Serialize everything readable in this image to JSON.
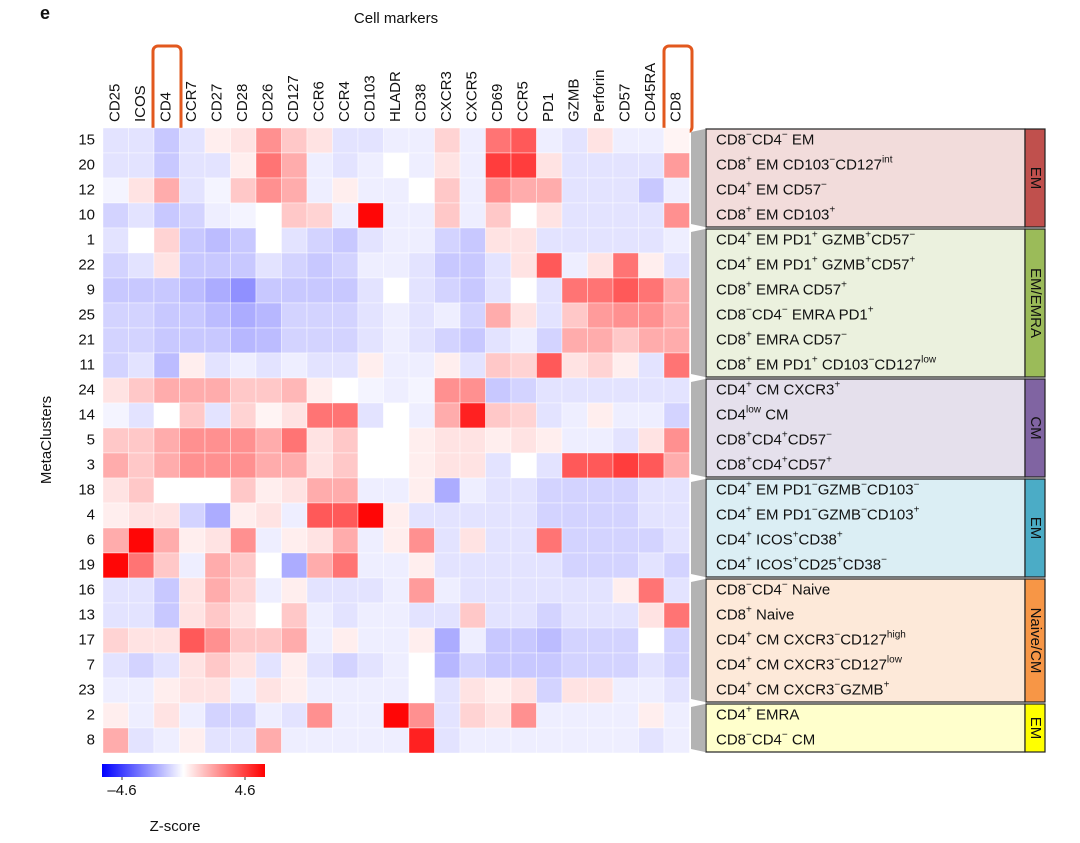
{
  "chart_data": {
    "type": "heatmap",
    "panel_label": "e",
    "x_label": "Cell markers",
    "y_label": "MetaClusters",
    "columns": [
      "CD25",
      "ICOS",
      "CD4",
      "CCR7",
      "CD27",
      "CD28",
      "CD26",
      "CD127",
      "CCR6",
      "CCR4",
      "CD103",
      "HLADR",
      "CD38",
      "CXCR3",
      "CXCR5",
      "CD69",
      "CCR5",
      "PD1",
      "GZMB",
      "Perforin",
      "CD57",
      "CD45RA",
      "CD8"
    ],
    "rows": [
      "15",
      "20",
      "12",
      "10",
      "1",
      "22",
      "9",
      "25",
      "21",
      "11",
      "24",
      "14",
      "5",
      "3",
      "18",
      "4",
      "6",
      "19",
      "16",
      "13",
      "17",
      "7",
      "23",
      "2",
      "8"
    ],
    "values": [
      [
        -0.5,
        -0.5,
        -1,
        -0.5,
        0.3,
        0.5,
        2,
        1,
        0.5,
        -0.5,
        -0.5,
        -0.3,
        -0.3,
        0.8,
        -0.3,
        2.5,
        3,
        -0.3,
        -0.5,
        0.5,
        -0.3,
        -0.3,
        0.2
      ],
      [
        -0.5,
        -0.5,
        -1,
        -0.5,
        -0.5,
        0.3,
        2.5,
        1.5,
        -0.3,
        -0.5,
        -0.3,
        0,
        -0.3,
        0.5,
        -0.3,
        3.5,
        3.5,
        0.5,
        -0.5,
        -0.5,
        -0.5,
        -0.5,
        1.8
      ],
      [
        -0.2,
        0.5,
        1.5,
        -0.5,
        -0.2,
        1,
        2,
        1.5,
        -0.3,
        0.3,
        -0.3,
        -0.3,
        0,
        1,
        -0.3,
        2,
        1.5,
        1.5,
        -0.5,
        -0.5,
        -0.5,
        -1,
        -0.3
      ],
      [
        -0.8,
        -0.5,
        -1,
        -0.8,
        -0.3,
        -0.2,
        0,
        1,
        0.8,
        -0.3,
        4.5,
        -0.3,
        -0.3,
        1,
        -0.3,
        1,
        0,
        0.5,
        -0.5,
        -0.5,
        -0.5,
        -0.5,
        2
      ],
      [
        -0.5,
        0,
        0.8,
        -1,
        -1.2,
        -1,
        0,
        -0.5,
        -0.8,
        -1,
        -0.5,
        -0.3,
        -0.3,
        -0.8,
        -1,
        0.5,
        0.5,
        -0.5,
        -0.5,
        -0.5,
        -0.5,
        -0.5,
        -0.3
      ],
      [
        -0.8,
        -0.5,
        0.5,
        -1,
        -1,
        -1,
        -0.5,
        -0.8,
        -1,
        -0.8,
        -0.3,
        -0.3,
        -0.5,
        -1,
        -1,
        -0.5,
        0.5,
        3,
        -0.3,
        0.5,
        2.5,
        0.3,
        -0.5
      ],
      [
        -1,
        -1,
        -1,
        -1.2,
        -1.5,
        -2,
        -1,
        -1,
        -1,
        -1,
        -0.5,
        0,
        -0.5,
        -0.8,
        -1,
        -0.5,
        0,
        -0.5,
        2.5,
        2.5,
        3,
        2.5,
        1.5
      ],
      [
        -0.8,
        -0.8,
        -1,
        -1,
        -1.2,
        -1.5,
        -1.3,
        -0.8,
        -0.8,
        -0.8,
        -0.5,
        -0.3,
        -0.5,
        -0.3,
        -0.8,
        1.5,
        0.5,
        -0.5,
        1,
        1.8,
        2,
        2,
        1.5
      ],
      [
        -0.8,
        -0.8,
        -1,
        -1,
        -1,
        -1.3,
        -1.2,
        -0.8,
        -0.8,
        -0.8,
        -0.5,
        -0.3,
        -0.5,
        -0.8,
        -1,
        -0.5,
        -0.3,
        -0.8,
        1.5,
        1.5,
        1,
        1.5,
        1.5
      ],
      [
        -0.8,
        -0.5,
        -1.2,
        0.3,
        -0.5,
        -0.3,
        -0.5,
        -0.3,
        -0.5,
        -0.5,
        0.3,
        -0.3,
        -0.3,
        0.3,
        -0.5,
        1,
        0.8,
        3,
        0.5,
        0.8,
        0.3,
        -0.5,
        2.5
      ],
      [
        0.5,
        1,
        1.5,
        1.5,
        1.5,
        1,
        1,
        1.3,
        0.3,
        0,
        -0.2,
        -0.3,
        -0.2,
        2,
        2,
        -1,
        -0.8,
        -0.5,
        -0.5,
        -0.5,
        -0.5,
        -0.5,
        -0.5
      ],
      [
        -0.2,
        -0.5,
        0,
        1,
        -0.5,
        0.8,
        0.2,
        0.5,
        2.5,
        2.5,
        -0.5,
        0,
        -0.3,
        1.5,
        4,
        1,
        0.8,
        -0.5,
        -0.3,
        0.3,
        -0.3,
        -0.3,
        -0.8
      ],
      [
        1,
        1,
        1.5,
        2,
        2,
        2,
        1.5,
        2.5,
        0.5,
        1,
        0,
        0,
        0.3,
        0.5,
        0.5,
        0.3,
        0.5,
        0.3,
        -0.3,
        -0.3,
        -0.5,
        0.5,
        2
      ],
      [
        1.5,
        1,
        1.5,
        2,
        2,
        2,
        1.5,
        1.5,
        0.5,
        1,
        0,
        0,
        0.3,
        0.5,
        0.5,
        -0.5,
        0,
        -0.5,
        3,
        3,
        3.5,
        3,
        1.5
      ],
      [
        0.5,
        1,
        0,
        0,
        0,
        1,
        0.3,
        0.5,
        1.5,
        1.5,
        -0.3,
        -0.3,
        0.3,
        -1.5,
        -0.3,
        -0.5,
        -0.5,
        -0.8,
        -0.8,
        -0.8,
        -0.8,
        -0.5,
        -0.5
      ],
      [
        0.3,
        0.5,
        0.5,
        -0.8,
        -1.5,
        0.3,
        0.5,
        -0.3,
        3,
        3,
        4.5,
        0.3,
        -0.5,
        -0.5,
        -0.5,
        -0.5,
        -0.5,
        -0.8,
        -0.8,
        -0.8,
        -0.8,
        -0.5,
        -0.5
      ],
      [
        1.5,
        4.5,
        1.5,
        0.3,
        0.5,
        2,
        -0.3,
        0.3,
        0.5,
        1.5,
        -0.3,
        0.3,
        2,
        -0.5,
        0.5,
        -0.5,
        -0.5,
        2.5,
        -0.8,
        -0.8,
        -0.8,
        -0.8,
        -0.5
      ],
      [
        4.5,
        2.5,
        1,
        -0.3,
        1.5,
        1,
        0,
        -1.5,
        1.5,
        2.5,
        -0.3,
        -0.3,
        0.3,
        -0.5,
        -0.5,
        -0.5,
        -0.5,
        -0.5,
        -0.8,
        -0.8,
        -0.8,
        -0.5,
        -0.8
      ],
      [
        -0.5,
        -0.5,
        -1,
        0.5,
        1.5,
        0.8,
        -0.3,
        0.3,
        -0.5,
        -0.5,
        -0.5,
        -0.3,
        1.8,
        -0.3,
        -0.5,
        -0.5,
        -0.5,
        -0.5,
        -0.5,
        -0.5,
        0.3,
        2.5,
        -0.5
      ],
      [
        -0.5,
        -0.5,
        -1,
        0.5,
        1,
        0.5,
        0,
        1,
        -0.3,
        -0.5,
        -0.3,
        -0.3,
        -0.5,
        -0.5,
        1,
        -0.5,
        -0.5,
        -0.8,
        -0.5,
        -0.5,
        -0.5,
        0.5,
        2.5
      ],
      [
        0.8,
        0.5,
        0.5,
        3,
        2,
        1,
        1,
        1.5,
        -0.3,
        0.3,
        -0.3,
        -0.3,
        0.3,
        -1.5,
        -0.3,
        -1,
        -1,
        -1.2,
        -0.8,
        -0.8,
        -0.8,
        0,
        -0.8
      ],
      [
        -0.5,
        -0.8,
        -0.5,
        0.5,
        1,
        0.5,
        -0.5,
        0.3,
        -0.5,
        -0.8,
        -0.5,
        -0.3,
        0,
        -1.3,
        -0.8,
        -1,
        -1,
        -1,
        -0.8,
        -0.8,
        -0.8,
        -0.5,
        -0.8
      ],
      [
        -0.3,
        -0.3,
        0.3,
        0.5,
        0.5,
        -0.3,
        0.5,
        0.3,
        -0.3,
        -0.3,
        -0.3,
        -0.3,
        0,
        -0.5,
        0.5,
        0.3,
        0.5,
        -0.8,
        0.5,
        0.5,
        -0.3,
        -0.3,
        -0.5
      ],
      [
        0.3,
        -0.3,
        0.5,
        -0.3,
        -0.8,
        -0.8,
        -0.3,
        -0.5,
        2,
        -0.3,
        -0.3,
        4.5,
        2,
        -0.5,
        0.8,
        0.5,
        2,
        -0.3,
        -0.3,
        -0.3,
        -0.3,
        0.3,
        -0.3
      ],
      [
        1.5,
        -0.5,
        -0.3,
        0.3,
        -0.5,
        -0.5,
        1.5,
        -0.3,
        -0.3,
        -0.3,
        -0.3,
        -0.3,
        4,
        -0.5,
        -0.3,
        -0.3,
        -0.3,
        -0.3,
        -0.3,
        -0.3,
        -0.3,
        -0.5,
        -0.3
      ]
    ],
    "colorbar": {
      "label": "Z-score",
      "clim": [
        -4.6,
        4.6
      ],
      "ticks": [
        {
          "value": -4.6,
          "label": "–4.6"
        },
        4.6
      ],
      "colors": [
        "#0000ff",
        "#ffffff",
        "#ff0000"
      ]
    },
    "groups": [
      {
        "name": "EM",
        "color": "#c0504d",
        "fill": "#f2dcdb",
        "labels": [
          [
            "CD8",
            {
              "sup": "−"
            },
            "CD4",
            {
              "sup": "−"
            },
            " EM"
          ],
          [
            "CD8",
            {
              "sup": "+"
            },
            " EM CD103",
            {
              "sup": "−"
            },
            "CD127",
            {
              "sup": "int"
            }
          ],
          [
            "CD4",
            {
              "sup": "+"
            },
            " EM CD57",
            {
              "sup": "−"
            }
          ],
          [
            "CD8",
            {
              "sup": "+"
            },
            " EM CD103",
            {
              "sup": "+"
            }
          ]
        ]
      },
      {
        "name": "EM/EMRA",
        "color": "#9bbb59",
        "fill": "#ebf1de",
        "labels": [
          [
            "CD4",
            {
              "sup": "+"
            },
            " EM PD1",
            {
              "sup": "+"
            },
            " GZMB",
            {
              "sup": "+"
            },
            "CD57",
            {
              "sup": "−"
            }
          ],
          [
            "CD4",
            {
              "sup": "+"
            },
            " EM PD1",
            {
              "sup": "+"
            },
            " GZMB",
            {
              "sup": "+"
            },
            "CD57",
            {
              "sup": "+"
            }
          ],
          [
            "CD8",
            {
              "sup": "+"
            },
            " EMRA CD57",
            {
              "sup": "+"
            }
          ],
          [
            "CD8",
            {
              "sup": "−"
            },
            "CD4",
            {
              "sup": "−"
            },
            " EMRA PD1",
            {
              "sup": "+"
            }
          ],
          [
            "CD8",
            {
              "sup": "+"
            },
            " EMRA CD57",
            {
              "sup": "−"
            }
          ],
          [
            "CD8",
            {
              "sup": "+"
            },
            " EM PD1",
            {
              "sup": "+"
            },
            " CD103",
            {
              "sup": "−"
            },
            "CD127",
            {
              "sup": "low"
            }
          ]
        ]
      },
      {
        "name": "CM",
        "color": "#8064a2",
        "fill": "#e5e0ec",
        "labels": [
          [
            "CD4",
            {
              "sup": "+"
            },
            " CM CXCR3",
            {
              "sup": "+"
            }
          ],
          [
            "CD4",
            {
              "sup": "low"
            },
            " CM"
          ],
          [
            "CD8",
            {
              "sup": "+"
            },
            "CD4",
            {
              "sup": "+"
            },
            "CD57",
            {
              "sup": "−"
            }
          ],
          [
            "CD8",
            {
              "sup": "+"
            },
            "CD4",
            {
              "sup": "+"
            },
            "CD57",
            {
              "sup": "+"
            }
          ]
        ]
      },
      {
        "name": "EM",
        "color": "#4bacc6",
        "fill": "#dbeef4",
        "labels": [
          [
            "CD4",
            {
              "sup": "+"
            },
            " EM PD1",
            {
              "sup": "−"
            },
            "GZMB",
            {
              "sup": "−"
            },
            "CD103",
            {
              "sup": "−"
            }
          ],
          [
            "CD4",
            {
              "sup": "+"
            },
            " EM PD1",
            {
              "sup": "−"
            },
            "GZMB",
            {
              "sup": "−"
            },
            "CD103",
            {
              "sup": "+"
            }
          ],
          [
            "CD4",
            {
              "sup": "+"
            },
            " ICOS",
            {
              "sup": "+"
            },
            "CD38",
            {
              "sup": "+"
            }
          ],
          [
            "CD4",
            {
              "sup": "+"
            },
            " ICOS",
            {
              "sup": "+"
            },
            "CD25",
            {
              "sup": "+"
            },
            "CD38",
            {
              "sup": "−"
            }
          ]
        ]
      },
      {
        "name": "Naive/CM",
        "color": "#f79646",
        "fill": "#fde9d9",
        "labels": [
          [
            "CD8",
            {
              "sup": "−"
            },
            "CD4",
            {
              "sup": "−"
            },
            " Naive"
          ],
          [
            "CD8",
            {
              "sup": "+"
            },
            " Naive"
          ],
          [
            "CD4",
            {
              "sup": "+"
            },
            " CM CXCR3",
            {
              "sup": "−"
            },
            "CD127",
            {
              "sup": "high"
            }
          ],
          [
            "CD4",
            {
              "sup": "+"
            },
            " CM CXCR3",
            {
              "sup": "−"
            },
            "CD127",
            {
              "sup": "low"
            }
          ],
          [
            "CD4",
            {
              "sup": "+"
            },
            " CM CXCR3",
            {
              "sup": "−"
            },
            "GZMB",
            {
              "sup": "+"
            }
          ]
        ]
      },
      {
        "name": "EM",
        "color": "#ffff00",
        "fill": "#ffffcc",
        "labels": [
          [
            "CD4",
            {
              "sup": "+"
            },
            " EMRA"
          ],
          [
            "CD8",
            {
              "sup": "−"
            },
            "CD4",
            {
              "sup": "−"
            },
            " CM"
          ]
        ]
      }
    ]
  }
}
